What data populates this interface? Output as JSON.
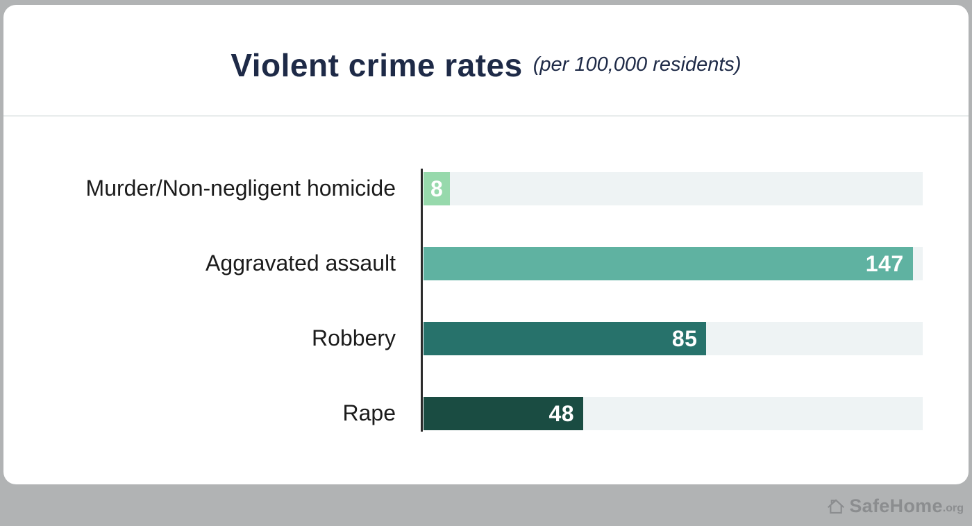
{
  "header": {
    "title": "Violent crime rates",
    "subtitle": "(per 100,000 residents)"
  },
  "chart_data": {
    "type": "bar",
    "orientation": "horizontal",
    "title": "Violent crime rates (per 100,000 residents)",
    "categories": [
      "Murder/Non-negligent homicide",
      "Aggravated assault",
      "Robbery",
      "Rape"
    ],
    "values": [
      8,
      147,
      85,
      48
    ],
    "bar_colors": [
      "#97d9ac",
      "#5fb2a1",
      "#27726b",
      "#1a4c42"
    ],
    "track_color": "#eef3f4",
    "axis_line_color": "#2b2b2b",
    "value_label_color": "#ffffff",
    "value_label_position": "inside-end",
    "xlim": [
      0,
      150
    ],
    "gridlines": false,
    "legend": false
  },
  "footer": {
    "brand": "SafeHome",
    "brand_suffix": ".org",
    "icon": "house-icon"
  },
  "colors": {
    "page_background": "#b1b3b4",
    "card_background": "#ffffff",
    "title_text": "#1e2a47",
    "category_text": "#1b1b1b",
    "divider": "#e8ecec",
    "footer_text": "#8b8d8f"
  }
}
